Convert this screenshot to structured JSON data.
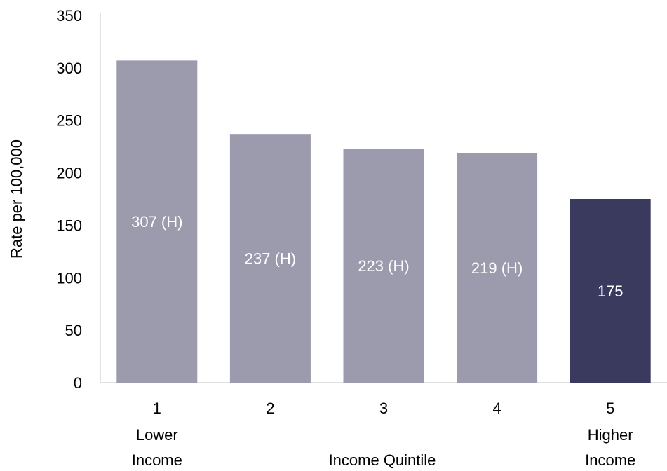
{
  "chart_data": {
    "type": "bar",
    "categories": [
      "1",
      "2",
      "3",
      "4",
      "5"
    ],
    "category_sublabels": [
      "Lower\nIncome",
      "",
      "",
      "",
      "Higher\nIncome"
    ],
    "values": [
      307,
      237,
      223,
      219,
      175
    ],
    "data_labels": [
      "307 (H)",
      "237 (H)",
      "223 (H)",
      "219 (H)",
      "175"
    ],
    "xlabel": "Income Quintile",
    "ylabel": "Rate per 100,000",
    "ylim": [
      0,
      350
    ],
    "yticks": [
      0,
      50,
      100,
      150,
      200,
      250,
      300,
      350
    ],
    "grid": false,
    "legend": "none",
    "colors": {
      "default_bar": "#9b9bad",
      "highlight_bar": "#3a3a5e",
      "label_on_bar": "#ffffff",
      "text": "#000000",
      "axis": "#d9d9d9"
    },
    "highlight_index": 4
  }
}
